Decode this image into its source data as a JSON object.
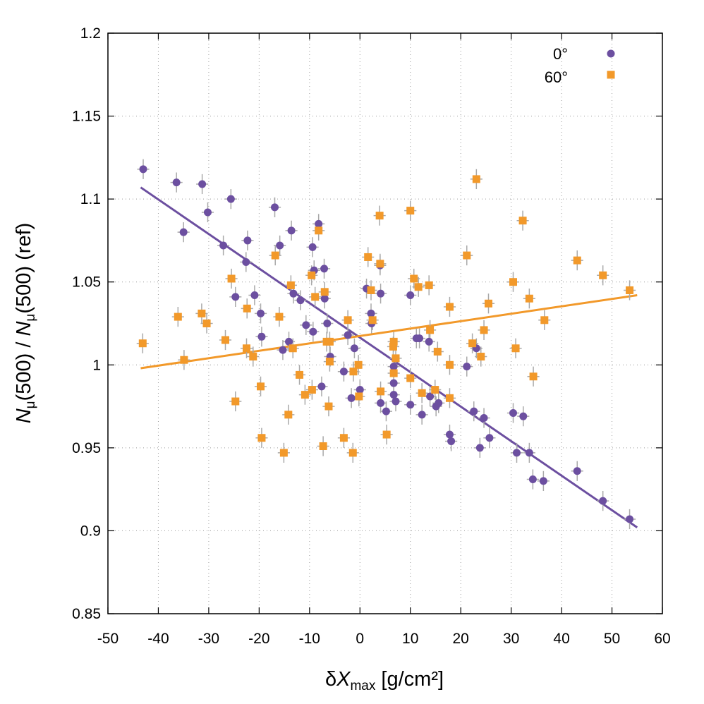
{
  "chart_data": {
    "type": "scatter",
    "title": "",
    "xlabel": {
      "prefix": "δ",
      "main": "X",
      "sub": "max",
      "suffix": " [g/cm²]"
    },
    "ylabel": {
      "n1": "N",
      "s1": "μ",
      "t1": "(500) / ",
      "n2": "N",
      "s2": "μ",
      "t2": "(500) (ref)"
    },
    "xlim": [
      -50,
      60
    ],
    "ylim": [
      0.85,
      1.2
    ],
    "xticks": [
      -50,
      -40,
      -30,
      -20,
      -10,
      0,
      10,
      20,
      30,
      40,
      50,
      60
    ],
    "xtick_labels": [
      "-50",
      "-40",
      "-30",
      "-20",
      "-10",
      "0",
      "10",
      "20",
      "30",
      "40",
      "50",
      "60"
    ],
    "yticks": [
      0.85,
      0.9,
      0.95,
      1,
      1.05,
      1.1,
      1.15,
      1.2
    ],
    "ytick_labels": [
      "0.85",
      "0.9",
      "0.95",
      "1",
      "1.05",
      "1.1",
      "1.15",
      "1.2"
    ],
    "grid": true,
    "legend_position": "top-right",
    "error_bars": {
      "x": 1.2,
      "y": 0.006
    },
    "series": [
      {
        "name": "0°",
        "marker": "circle",
        "color": "#6c4fa0",
        "fit": {
          "x": [
            -43.5,
            55
          ],
          "y": [
            1.107,
            0.902
          ]
        },
        "points": [
          [
            -43,
            1.118
          ],
          [
            -36.4,
            1.11
          ],
          [
            -31.3,
            1.109
          ],
          [
            -30.2,
            1.092
          ],
          [
            -35,
            1.08
          ],
          [
            -25.6,
            1.1
          ],
          [
            -27.1,
            1.072
          ],
          [
            -22.3,
            1.075
          ],
          [
            -22.6,
            1.062
          ],
          [
            -24.7,
            1.041
          ],
          [
            -20.9,
            1.042
          ],
          [
            -19.7,
            1.031
          ],
          [
            -19.5,
            1.017
          ],
          [
            -16.9,
            1.095
          ],
          [
            -15.9,
            1.072
          ],
          [
            -13.6,
            1.081
          ],
          [
            -13.2,
            1.043
          ],
          [
            -11.8,
            1.039
          ],
          [
            -14.1,
            1.014
          ],
          [
            -15.3,
            1.009
          ],
          [
            -9.4,
            1.071
          ],
          [
            -9.1,
            1.057
          ],
          [
            -8.2,
            1.085
          ],
          [
            -7.1,
            1.058
          ],
          [
            -7,
            1.04
          ],
          [
            -10.7,
            1.024
          ],
          [
            -9.3,
            1.02
          ],
          [
            -6.5,
            1.025
          ],
          [
            -5.9,
            1.005
          ],
          [
            -7.6,
            0.987
          ],
          [
            -2.4,
            1.018
          ],
          [
            -3.2,
            0.996
          ],
          [
            -1.7,
            0.98
          ],
          [
            -1.1,
            1.01
          ],
          [
            0,
            0.985
          ],
          [
            2.2,
            1.031
          ],
          [
            2.3,
            1.025
          ],
          [
            1.3,
            1.046
          ],
          [
            4,
            1.06
          ],
          [
            4.1,
            1.043
          ],
          [
            4.1,
            0.977
          ],
          [
            5.2,
            0.972
          ],
          [
            6.7,
            0.999
          ],
          [
            6.7,
            0.989
          ],
          [
            6.7,
            0.982
          ],
          [
            7.1,
            0.978
          ],
          [
            10,
            1.042
          ],
          [
            10,
            0.976
          ],
          [
            11.2,
            1.016
          ],
          [
            11.8,
            1.016
          ],
          [
            12.3,
            0.97
          ],
          [
            13.7,
            1.014
          ],
          [
            13.9,
            0.981
          ],
          [
            15.1,
            0.975
          ],
          [
            15.6,
            0.977
          ],
          [
            17.8,
            0.958
          ],
          [
            18.1,
            0.954
          ],
          [
            21.2,
            0.999
          ],
          [
            22.6,
            0.972
          ],
          [
            23.1,
            1.01
          ],
          [
            23.8,
            0.95
          ],
          [
            24.6,
            0.968
          ],
          [
            25.7,
            0.956
          ],
          [
            30.4,
            0.971
          ],
          [
            31.1,
            0.947
          ],
          [
            32.4,
            0.969
          ],
          [
            33.6,
            0.947
          ],
          [
            34.3,
            0.931
          ],
          [
            36.4,
            0.93
          ],
          [
            43.1,
            0.936
          ],
          [
            48.2,
            0.918
          ],
          [
            53.5,
            0.907
          ]
        ]
      },
      {
        "name": "60°",
        "marker": "square",
        "color": "#f2992a",
        "fit": {
          "x": [
            -43.5,
            55
          ],
          "y": [
            0.998,
            1.042
          ]
        },
        "points": [
          [
            -43.1,
            1.013
          ],
          [
            -36.1,
            1.029
          ],
          [
            -34.9,
            1.003
          ],
          [
            -31.4,
            1.031
          ],
          [
            -30.4,
            1.025
          ],
          [
            -26.7,
            1.015
          ],
          [
            -25.5,
            1.052
          ],
          [
            -24.7,
            0.978
          ],
          [
            -22.4,
            1.034
          ],
          [
            -22.5,
            1.01
          ],
          [
            -21.2,
            1.005
          ],
          [
            -19.7,
            0.987
          ],
          [
            -19.5,
            0.956
          ],
          [
            -16.8,
            1.066
          ],
          [
            -16,
            1.029
          ],
          [
            -15.1,
            0.947
          ],
          [
            -14.2,
            0.97
          ],
          [
            -13.7,
            1.048
          ],
          [
            -13.3,
            1.01
          ],
          [
            -12,
            0.994
          ],
          [
            -10.9,
            0.982
          ],
          [
            -9.6,
            1.054
          ],
          [
            -9.5,
            0.985
          ],
          [
            -8.9,
            1.041
          ],
          [
            -8.2,
            1.081
          ],
          [
            -7.3,
            0.951
          ],
          [
            -7,
            1.044
          ],
          [
            -6.6,
            1.014
          ],
          [
            -6,
            1.014
          ],
          [
            -6,
            1.002
          ],
          [
            -6.2,
            0.975
          ],
          [
            -3.2,
            0.956
          ],
          [
            -2.4,
            1.027
          ],
          [
            -1.4,
            0.947
          ],
          [
            -1.3,
            0.996
          ],
          [
            -0.3,
            1
          ],
          [
            -0.2,
            0.981
          ],
          [
            1.6,
            1.065
          ],
          [
            2.2,
            1.045
          ],
          [
            2.5,
            1.027
          ],
          [
            3.9,
            1.09
          ],
          [
            4,
            1.061
          ],
          [
            4.1,
            0.984
          ],
          [
            5.3,
            0.958
          ],
          [
            6.7,
            1.014
          ],
          [
            6.6,
            1.011
          ],
          [
            6.7,
            0.995
          ],
          [
            7.1,
            1.004
          ],
          [
            10,
            1.093
          ],
          [
            10,
            0.992
          ],
          [
            10.7,
            1.052
          ],
          [
            11.6,
            1.047
          ],
          [
            12.3,
            0.983
          ],
          [
            13.7,
            1.048
          ],
          [
            13.9,
            1.021
          ],
          [
            14.9,
            0.985
          ],
          [
            15.4,
            1.008
          ],
          [
            17.8,
            1.035
          ],
          [
            17.8,
            1
          ],
          [
            17.8,
            0.98
          ],
          [
            21.2,
            1.066
          ],
          [
            22.3,
            1.013
          ],
          [
            23.1,
            1.112
          ],
          [
            24,
            1.005
          ],
          [
            24.6,
            1.021
          ],
          [
            25.5,
            1.037
          ],
          [
            30.4,
            1.05
          ],
          [
            30.9,
            1.01
          ],
          [
            32.3,
            1.087
          ],
          [
            33.6,
            1.04
          ],
          [
            34.4,
            0.993
          ],
          [
            36.6,
            1.027
          ],
          [
            43.1,
            1.063
          ],
          [
            48.2,
            1.054
          ],
          [
            53.5,
            1.045
          ]
        ]
      }
    ]
  }
}
